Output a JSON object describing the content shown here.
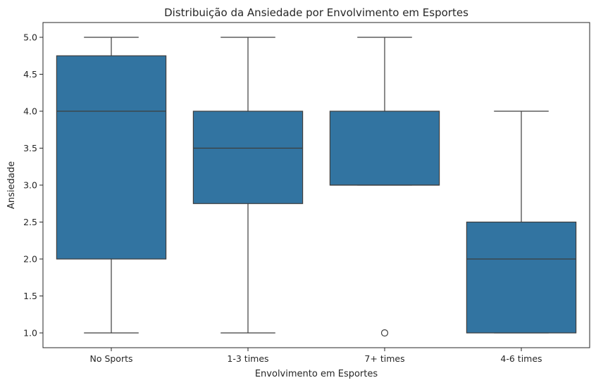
{
  "chart_data": {
    "type": "box",
    "title": "Distribuição da Ansiedade por Envolvimento em Esportes",
    "xlabel": "Envolvimento em Esportes",
    "ylabel": "Ansiedade",
    "ylim": [
      0.8,
      5.2
    ],
    "yticks": [
      "1.0",
      "1.5",
      "2.0",
      "2.5",
      "3.0",
      "3.5",
      "4.0",
      "4.5",
      "5.0"
    ],
    "categories": [
      "No Sports",
      "1-3 times",
      "7+ times",
      "4-6 times"
    ],
    "box_color": "#3274a1",
    "line_color": "#3d3d3d",
    "grid": false,
    "boxes": [
      {
        "category": "No Sports",
        "whisker_low": 1.0,
        "q1": 2.0,
        "median": 4.0,
        "q3": 4.75,
        "whisker_high": 5.0,
        "outliers": []
      },
      {
        "category": "1-3 times",
        "whisker_low": 1.0,
        "q1": 2.75,
        "median": 3.5,
        "q3": 4.0,
        "whisker_high": 5.0,
        "outliers": []
      },
      {
        "category": "7+ times",
        "whisker_low": 3.0,
        "q1": 3.0,
        "median": 3.0,
        "q3": 4.0,
        "whisker_high": 5.0,
        "outliers": [
          1.0
        ]
      },
      {
        "category": "4-6 times",
        "whisker_low": 1.0,
        "q1": 1.0,
        "median": 2.0,
        "q3": 2.5,
        "whisker_high": 4.0,
        "outliers": []
      }
    ]
  }
}
